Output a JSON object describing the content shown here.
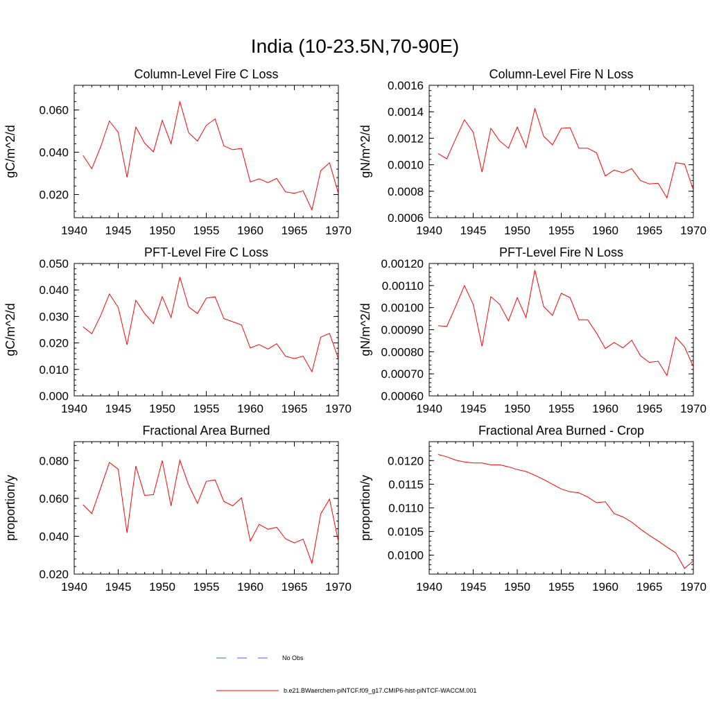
{
  "title": "India (10-23.5N,70-90E)",
  "colors": {
    "model": "#ff0000",
    "obs": "#4a5fd0",
    "axis": "#000000"
  },
  "legend": {
    "obs_label": "No Obs",
    "model_label": "b.e21.BWaerchem-piNTCF.f09_g17.CMIP6-hist-piNTCF-WACCM.001"
  },
  "chart_data": [
    {
      "type": "line",
      "title": "Column-Level Fire C Loss",
      "ylabel": "gC/m^2/d",
      "xlim": [
        1940,
        1970
      ],
      "ylim": [
        0.009,
        0.0717
      ],
      "xticks": [
        1940,
        1945,
        1950,
        1955,
        1960,
        1965,
        1970
      ],
      "yticks": [
        0.02,
        0.04,
        0.06
      ],
      "ytick_labels": [
        "0.020",
        "0.040",
        "0.060"
      ],
      "x": [
        1941,
        1942,
        1943,
        1944,
        1945,
        1946,
        1947,
        1948,
        1949,
        1950,
        1951,
        1952,
        1953,
        1954,
        1955,
        1956,
        1957,
        1958,
        1959,
        1960,
        1961,
        1962,
        1963,
        1964,
        1965,
        1966,
        1967,
        1968,
        1969,
        1970
      ],
      "series": [
        {
          "values": [
            0.0385,
            0.0322,
            0.0425,
            0.0548,
            0.0494,
            0.0281,
            0.0519,
            0.0443,
            0.0402,
            0.0551,
            0.044,
            0.0641,
            0.0492,
            0.0453,
            0.0527,
            0.0558,
            0.043,
            0.0412,
            0.0418,
            0.0259,
            0.0274,
            0.0256,
            0.0276,
            0.0212,
            0.0206,
            0.0217,
            0.0127,
            0.0313,
            0.035,
            0.0205
          ]
        }
      ]
    },
    {
      "type": "line",
      "title": "Column-Level Fire N Loss",
      "ylabel": "gN/m^2/d",
      "xlim": [
        1940,
        1970
      ],
      "ylim": [
        0.0006,
        0.0016
      ],
      "xticks": [
        1940,
        1945,
        1950,
        1955,
        1960,
        1965,
        1970
      ],
      "yticks": [
        0.0006,
        0.0008,
        0.001,
        0.0012,
        0.0014,
        0.0016
      ],
      "ytick_labels": [
        "0.0006",
        "0.0008",
        "0.0010",
        "0.0012",
        "0.0014",
        "0.0016"
      ],
      "x": [
        1941,
        1942,
        1943,
        1944,
        1945,
        1946,
        1947,
        1948,
        1949,
        1950,
        1951,
        1952,
        1953,
        1954,
        1955,
        1956,
        1957,
        1958,
        1959,
        1960,
        1961,
        1962,
        1963,
        1964,
        1965,
        1966,
        1967,
        1968,
        1969,
        1970
      ],
      "series": [
        {
          "values": [
            0.001085,
            0.001045,
            0.001195,
            0.00134,
            0.001245,
            0.000945,
            0.001275,
            0.00118,
            0.001125,
            0.001285,
            0.00113,
            0.001425,
            0.001215,
            0.00115,
            0.001275,
            0.00128,
            0.001125,
            0.001125,
            0.00109,
            0.000915,
            0.00096,
            0.00094,
            0.00097,
            0.00088,
            0.000855,
            0.00086,
            0.00075,
            0.001015,
            0.001005,
            0.00081
          ]
        }
      ]
    },
    {
      "type": "line",
      "title": "PFT-Level Fire C Loss",
      "ylabel": "gC/m^2/d",
      "xlim": [
        1940,
        1970
      ],
      "ylim": [
        0.0,
        0.05
      ],
      "xticks": [
        1940,
        1945,
        1950,
        1955,
        1960,
        1965,
        1970
      ],
      "yticks": [
        0.0,
        0.01,
        0.02,
        0.03,
        0.04,
        0.05
      ],
      "ytick_labels": [
        "0.000",
        "0.010",
        "0.020",
        "0.030",
        "0.040",
        "0.050"
      ],
      "x": [
        1941,
        1942,
        1943,
        1944,
        1945,
        1946,
        1947,
        1948,
        1949,
        1950,
        1951,
        1952,
        1953,
        1954,
        1955,
        1956,
        1957,
        1958,
        1959,
        1960,
        1961,
        1962,
        1963,
        1964,
        1965,
        1966,
        1967,
        1968,
        1969,
        1970
      ],
      "series": [
        {
          "values": [
            0.0261,
            0.0235,
            0.0303,
            0.0385,
            0.0334,
            0.0193,
            0.0361,
            0.0311,
            0.0273,
            0.0375,
            0.0296,
            0.0449,
            0.0336,
            0.0311,
            0.0369,
            0.0374,
            0.0292,
            0.028,
            0.0268,
            0.0181,
            0.0194,
            0.0177,
            0.0197,
            0.015,
            0.0141,
            0.015,
            0.0091,
            0.0222,
            0.0236,
            0.014
          ]
        }
      ]
    },
    {
      "type": "line",
      "title": "PFT-Level Fire N Loss",
      "ylabel": "gN/m^2/d",
      "xlim": [
        1940,
        1970
      ],
      "ylim": [
        0.0006,
        0.0012
      ],
      "xticks": [
        1940,
        1945,
        1950,
        1955,
        1960,
        1965,
        1970
      ],
      "yticks": [
        0.0006,
        0.0007,
        0.0008,
        0.0009,
        0.001,
        0.0011,
        0.0012
      ],
      "ytick_labels": [
        "0.00060",
        "0.00070",
        "0.00080",
        "0.00090",
        "0.00100",
        "0.00110",
        "0.00120"
      ],
      "x": [
        1941,
        1942,
        1943,
        1944,
        1945,
        1946,
        1947,
        1948,
        1949,
        1950,
        1951,
        1952,
        1953,
        1954,
        1955,
        1956,
        1957,
        1958,
        1959,
        1960,
        1961,
        1962,
        1963,
        1964,
        1965,
        1966,
        1967,
        1968,
        1969,
        1970
      ],
      "series": [
        {
          "values": [
            0.000918,
            0.000915,
            0.001005,
            0.0011,
            0.001015,
            0.000825,
            0.00105,
            0.001015,
            0.00094,
            0.001045,
            0.000955,
            0.00117,
            0.001005,
            0.000965,
            0.001065,
            0.001045,
            0.000945,
            0.000945,
            0.000885,
            0.000815,
            0.000842,
            0.000818,
            0.000852,
            0.000782,
            0.000752,
            0.000757,
            0.000692,
            0.000866,
            0.000822,
            0.000732
          ]
        }
      ]
    },
    {
      "type": "line",
      "title": "Fractional Area Burned",
      "ylabel": "proportion/y",
      "xlim": [
        1940,
        1970
      ],
      "ylim": [
        0.02,
        0.09
      ],
      "xticks": [
        1940,
        1945,
        1950,
        1955,
        1960,
        1965,
        1970
      ],
      "yticks": [
        0.02,
        0.04,
        0.06,
        0.08
      ],
      "ytick_labels": [
        "0.020",
        "0.040",
        "0.060",
        "0.080"
      ],
      "x": [
        1941,
        1942,
        1943,
        1944,
        1945,
        1946,
        1947,
        1948,
        1949,
        1950,
        1951,
        1952,
        1953,
        1954,
        1955,
        1956,
        1957,
        1958,
        1959,
        1960,
        1961,
        1962,
        1963,
        1964,
        1965,
        1966,
        1967,
        1968,
        1969,
        1970
      ],
      "series": [
        {
          "values": [
            0.0567,
            0.052,
            0.0655,
            0.079,
            0.0754,
            0.0418,
            0.0771,
            0.0616,
            0.062,
            0.08,
            0.0561,
            0.0802,
            0.0671,
            0.0574,
            0.069,
            0.0698,
            0.0584,
            0.0561,
            0.0603,
            0.0375,
            0.0463,
            0.0437,
            0.0447,
            0.0387,
            0.0365,
            0.0385,
            0.0257,
            0.0518,
            0.0597,
            0.0372
          ]
        }
      ]
    },
    {
      "type": "line",
      "title": "Fractional Area Burned - Crop",
      "ylabel": "proportion/y",
      "xlim": [
        1940,
        1970
      ],
      "ylim": [
        0.0096,
        0.0124
      ],
      "xticks": [
        1940,
        1945,
        1950,
        1955,
        1960,
        1965,
        1970
      ],
      "yticks": [
        0.01,
        0.0105,
        0.011,
        0.0115,
        0.012
      ],
      "ytick_labels": [
        "0.0100",
        "0.0105",
        "0.0110",
        "0.0115",
        "0.0120"
      ],
      "x": [
        1941,
        1942,
        1943,
        1944,
        1945,
        1946,
        1947,
        1948,
        1949,
        1950,
        1951,
        1952,
        1953,
        1954,
        1955,
        1956,
        1957,
        1958,
        1959,
        1960,
        1961,
        1962,
        1963,
        1964,
        1965,
        1966,
        1967,
        1968,
        1969,
        1970
      ],
      "series": [
        {
          "values": [
            0.01213,
            0.01208,
            0.01201,
            0.01197,
            0.01195,
            0.01195,
            0.01191,
            0.01191,
            0.01187,
            0.01181,
            0.01177,
            0.01169,
            0.0116,
            0.0115,
            0.0114,
            0.01134,
            0.01132,
            0.01123,
            0.01111,
            0.01113,
            0.01088,
            0.01081,
            0.0107,
            0.01055,
            0.01042,
            0.0103,
            0.01017,
            0.01005,
            0.00972,
            0.00988
          ]
        }
      ]
    }
  ]
}
